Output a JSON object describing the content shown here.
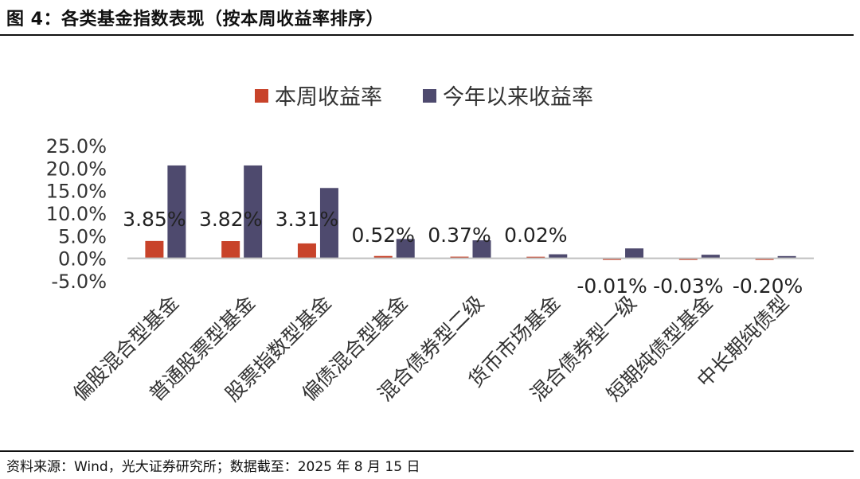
{
  "header": {
    "title": "图 4：各类基金指数表现（按本周收益率排序）"
  },
  "footer": {
    "source": "资料来源：Wind，光大证券研究所；数据截至：2025 年 8 月 15 日"
  },
  "colors": {
    "weekly": "#C8432A",
    "ytd": "#4E4A6E",
    "axis": "#BFBFBF"
  },
  "chart_data": {
    "type": "bar",
    "title": "",
    "xlabel": "",
    "ylabel": "",
    "ylim": [
      -5,
      25
    ],
    "yticks": [
      25,
      20,
      15,
      10,
      5,
      0,
      -5
    ],
    "ytick_labels": [
      "25.0%",
      "20.0%",
      "15.0%",
      "10.0%",
      "5.0%",
      "0.0%",
      "-5.0%"
    ],
    "legend_position": "top",
    "categories": [
      "偏股混合型基金",
      "普通股票型基金",
      "股票指数型基金",
      "偏债混合型基金",
      "混合债券型二级",
      "货币市场基金",
      "混合债券型一级",
      "短期纯债型基金",
      "中长期纯债型"
    ],
    "series": [
      {
        "name": "本周收益率",
        "values": [
          3.85,
          3.82,
          3.31,
          0.52,
          0.37,
          0.02,
          -0.01,
          -0.03,
          -0.2
        ],
        "data_labels": [
          "3.85%",
          "3.82%",
          "3.31%",
          "0.52%",
          "0.37%",
          "0.02%",
          "-0.01%",
          "-0.03%",
          "-0.20%"
        ]
      },
      {
        "name": "今年以来收益率",
        "values": [
          20.6,
          20.6,
          15.6,
          4.3,
          4.0,
          0.9,
          2.2,
          0.8,
          0.5
        ]
      }
    ]
  }
}
